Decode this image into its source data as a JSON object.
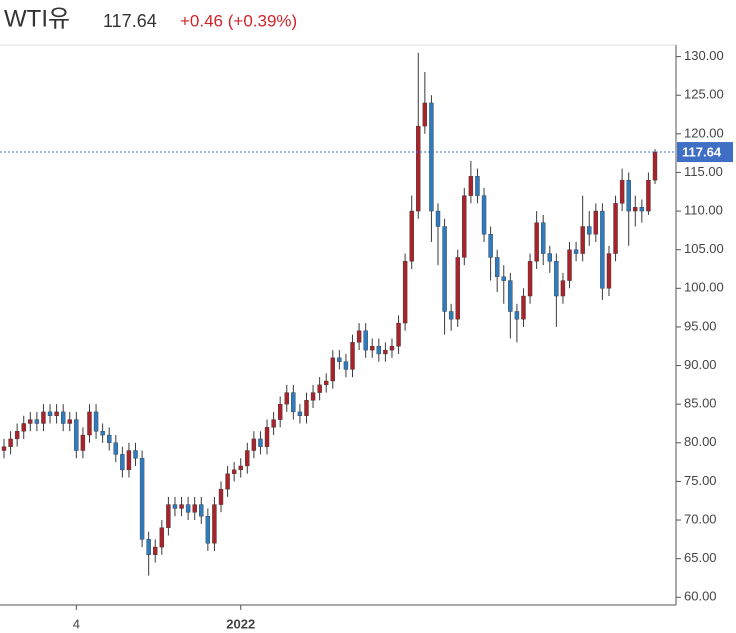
{
  "chart_data": {
    "type": "candlestick",
    "title": "WTI유",
    "change": "+0.46 (+0.39%)",
    "up_color": "#a8232a",
    "down_color": "#2f7bbf",
    "wick_color": "#3a3a3a",
    "price_line_color": "#3f6fc4",
    "ylim": [
      59,
      131.5
    ],
    "yticks": [
      {
        "value": 60,
        "label": "60.00"
      },
      {
        "value": 65,
        "label": "65.00"
      },
      {
        "value": 70,
        "label": "70.00"
      },
      {
        "value": 75,
        "label": "75.00"
      },
      {
        "value": 80,
        "label": "80.00"
      },
      {
        "value": 85,
        "label": "85.00"
      },
      {
        "value": 90,
        "label": "90.00"
      },
      {
        "value": 95,
        "label": "95.00"
      },
      {
        "value": 100,
        "label": "100.00"
      },
      {
        "value": 105,
        "label": "105.00"
      },
      {
        "value": 110,
        "label": "110.00"
      },
      {
        "value": 115,
        "label": "115.00"
      },
      {
        "value": 120,
        "label": "120.00"
      },
      {
        "value": 125,
        "label": "125.00"
      },
      {
        "value": 130,
        "label": "130.00"
      }
    ],
    "categories": [
      null,
      null,
      null,
      null,
      null,
      null,
      null,
      null,
      null,
      null,
      null,
      "4",
      null,
      null,
      null,
      null,
      null,
      null,
      null,
      null,
      null,
      null,
      null,
      null,
      null,
      null,
      null,
      null,
      null,
      null,
      null,
      null,
      null,
      null,
      null,
      null,
      "2022",
      null,
      null,
      null,
      null,
      null,
      null,
      null,
      null,
      null,
      null,
      null,
      null,
      null,
      null,
      null,
      null,
      null,
      null,
      null,
      null,
      null,
      null,
      null,
      null,
      null,
      null,
      null,
      null,
      null,
      null,
      null,
      null,
      null,
      null,
      null,
      null,
      null,
      null,
      null,
      null,
      null,
      null,
      null,
      null,
      null,
      null,
      null,
      null,
      null,
      null,
      null,
      null,
      null,
      null,
      null,
      null,
      null,
      null,
      null,
      null,
      null,
      null,
      null
    ],
    "open": [
      79,
      79.5,
      80.5,
      81.5,
      82.5,
      83,
      82.5,
      84,
      83.5,
      84,
      82.5,
      83,
      79,
      81,
      84,
      81.5,
      81,
      80,
      78.5,
      76.5,
      79,
      78,
      67.5,
      65.5,
      66.5,
      69,
      72,
      71.5,
      72,
      71,
      72,
      70.5,
      67,
      72,
      74,
      76,
      76.5,
      77,
      79,
      80.5,
      79.5,
      82,
      83,
      85,
      86.5,
      84,
      83.5,
      85.5,
      86.5,
      87.5,
      88,
      91,
      90.5,
      89.5,
      93,
      94.5,
      92,
      92.5,
      91.5,
      92,
      92.5,
      95.5,
      103.5,
      110,
      121,
      124,
      110,
      108,
      97,
      96,
      104,
      112,
      114.5,
      112,
      107,
      104,
      101.5,
      101,
      97,
      96,
      99,
      103.5,
      108.5,
      104.5,
      103.5,
      99,
      101,
      105,
      104.5,
      108,
      107,
      110,
      100,
      104.5,
      111,
      114,
      110,
      110.5,
      110,
      114
    ],
    "high": [
      80.5,
      81.5,
      82.5,
      83.5,
      84,
      84,
      85,
      85,
      85,
      85,
      84,
      84,
      82,
      85,
      85,
      82.5,
      82,
      81,
      79.5,
      80,
      80,
      79,
      68.5,
      67.5,
      70,
      73,
      73,
      73,
      73,
      73,
      73,
      71.5,
      73,
      75,
      77,
      77.5,
      78,
      80,
      81.5,
      81.5,
      83,
      84,
      86,
      87.5,
      87.5,
      85,
      86.5,
      87.5,
      88.5,
      89,
      92,
      92,
      91.5,
      94,
      95.5,
      95.5,
      93.5,
      93.5,
      93,
      93.5,
      96.5,
      104.5,
      112,
      130.5,
      128,
      125,
      111,
      109,
      98,
      105,
      113,
      116.5,
      115.5,
      113,
      108,
      105,
      103,
      102,
      98,
      100,
      104.5,
      110,
      109.5,
      105.5,
      104.5,
      102,
      106,
      106,
      112,
      110,
      111,
      111,
      105.5,
      112,
      115.5,
      115,
      112,
      111.5,
      115,
      118
    ],
    "low": [
      78,
      78.5,
      79.5,
      80.5,
      81.5,
      81.5,
      81.5,
      82.5,
      82.5,
      81.5,
      81.5,
      78,
      78,
      80,
      80.5,
      80,
      79,
      77.5,
      75.5,
      75.5,
      77,
      66.5,
      62.8,
      64.5,
      65.5,
      68,
      70.5,
      70.5,
      70,
      70,
      69.5,
      66,
      66,
      71,
      73,
      75,
      75.5,
      76,
      78,
      78.5,
      78.5,
      81,
      82,
      84,
      83,
      82.5,
      82.5,
      84.5,
      85.5,
      86.5,
      87,
      89.5,
      88.5,
      88.5,
      92,
      91,
      91,
      90.5,
      90.5,
      91,
      91.5,
      94.5,
      102.5,
      109,
      120,
      106,
      103,
      94,
      94.5,
      95,
      103,
      111,
      111,
      106,
      101,
      99.5,
      98,
      93.5,
      93,
      95,
      98,
      102.5,
      103,
      102,
      95,
      98,
      100,
      103.5,
      103.5,
      105.5,
      106,
      98.5,
      99,
      103.5,
      110,
      105.5,
      108,
      108.5,
      109.5,
      113.5
    ],
    "close": [
      79.5,
      80.5,
      81.5,
      82.5,
      83,
      82.5,
      84,
      83.5,
      84,
      82.5,
      83,
      79,
      81,
      84,
      81.5,
      81,
      80,
      78.5,
      76.5,
      79,
      78,
      67.5,
      65.5,
      66.5,
      69,
      72,
      71.5,
      72,
      71,
      72,
      70.5,
      67,
      72,
      74,
      76,
      76.5,
      77,
      79,
      80.5,
      79.5,
      82,
      83,
      85,
      86.5,
      84,
      83.5,
      85.5,
      86.5,
      87.5,
      88,
      91,
      90.5,
      89.5,
      93,
      94.5,
      92,
      92.5,
      91.5,
      92,
      92.5,
      95.5,
      103.5,
      110,
      121,
      124,
      110,
      108,
      97,
      96,
      104,
      112,
      114.5,
      112,
      107,
      104,
      101.5,
      101,
      97,
      96,
      99,
      103.5,
      108.5,
      104.5,
      103.5,
      99,
      101,
      105,
      104.5,
      108,
      107,
      110,
      100,
      104.5,
      111,
      114,
      110,
      110.5,
      110,
      114,
      117.64
    ]
  }
}
